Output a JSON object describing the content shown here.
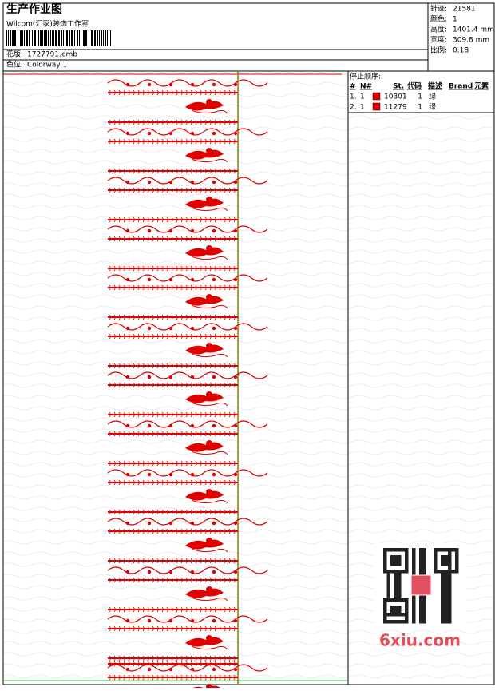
{
  "header": {
    "title": "生产作业图",
    "company": "Wilcom(汇家)装饰工作室",
    "design_label": "花版:",
    "design_file": "1727791.emb",
    "colorway_label": "色位:",
    "colorway": "Colorway 1"
  },
  "specs": [
    {
      "label": "针迹:",
      "value": "21581"
    },
    {
      "label": "颜色:",
      "value": "1"
    },
    {
      "label": "高度:",
      "value": "1401.4 mm"
    },
    {
      "label": "宽度:",
      "value": "309.8 mm"
    },
    {
      "label": "比例:",
      "value": "0.18"
    }
  ],
  "stop_sequence": {
    "title": "停止顺序:",
    "columns": [
      "#",
      "N#",
      "St.",
      "代码",
      "描述",
      "Brand",
      "元素"
    ],
    "rows": [
      {
        "index": "1.",
        "needle": "1",
        "color": "#e00000",
        "code": "10301",
        "count": "1",
        "description": "绿"
      },
      {
        "index": "2.",
        "needle": "1",
        "color": "#e00000",
        "code": "11279",
        "count": "1",
        "description": "绿"
      }
    ]
  },
  "watermark": "6xiu.com"
}
